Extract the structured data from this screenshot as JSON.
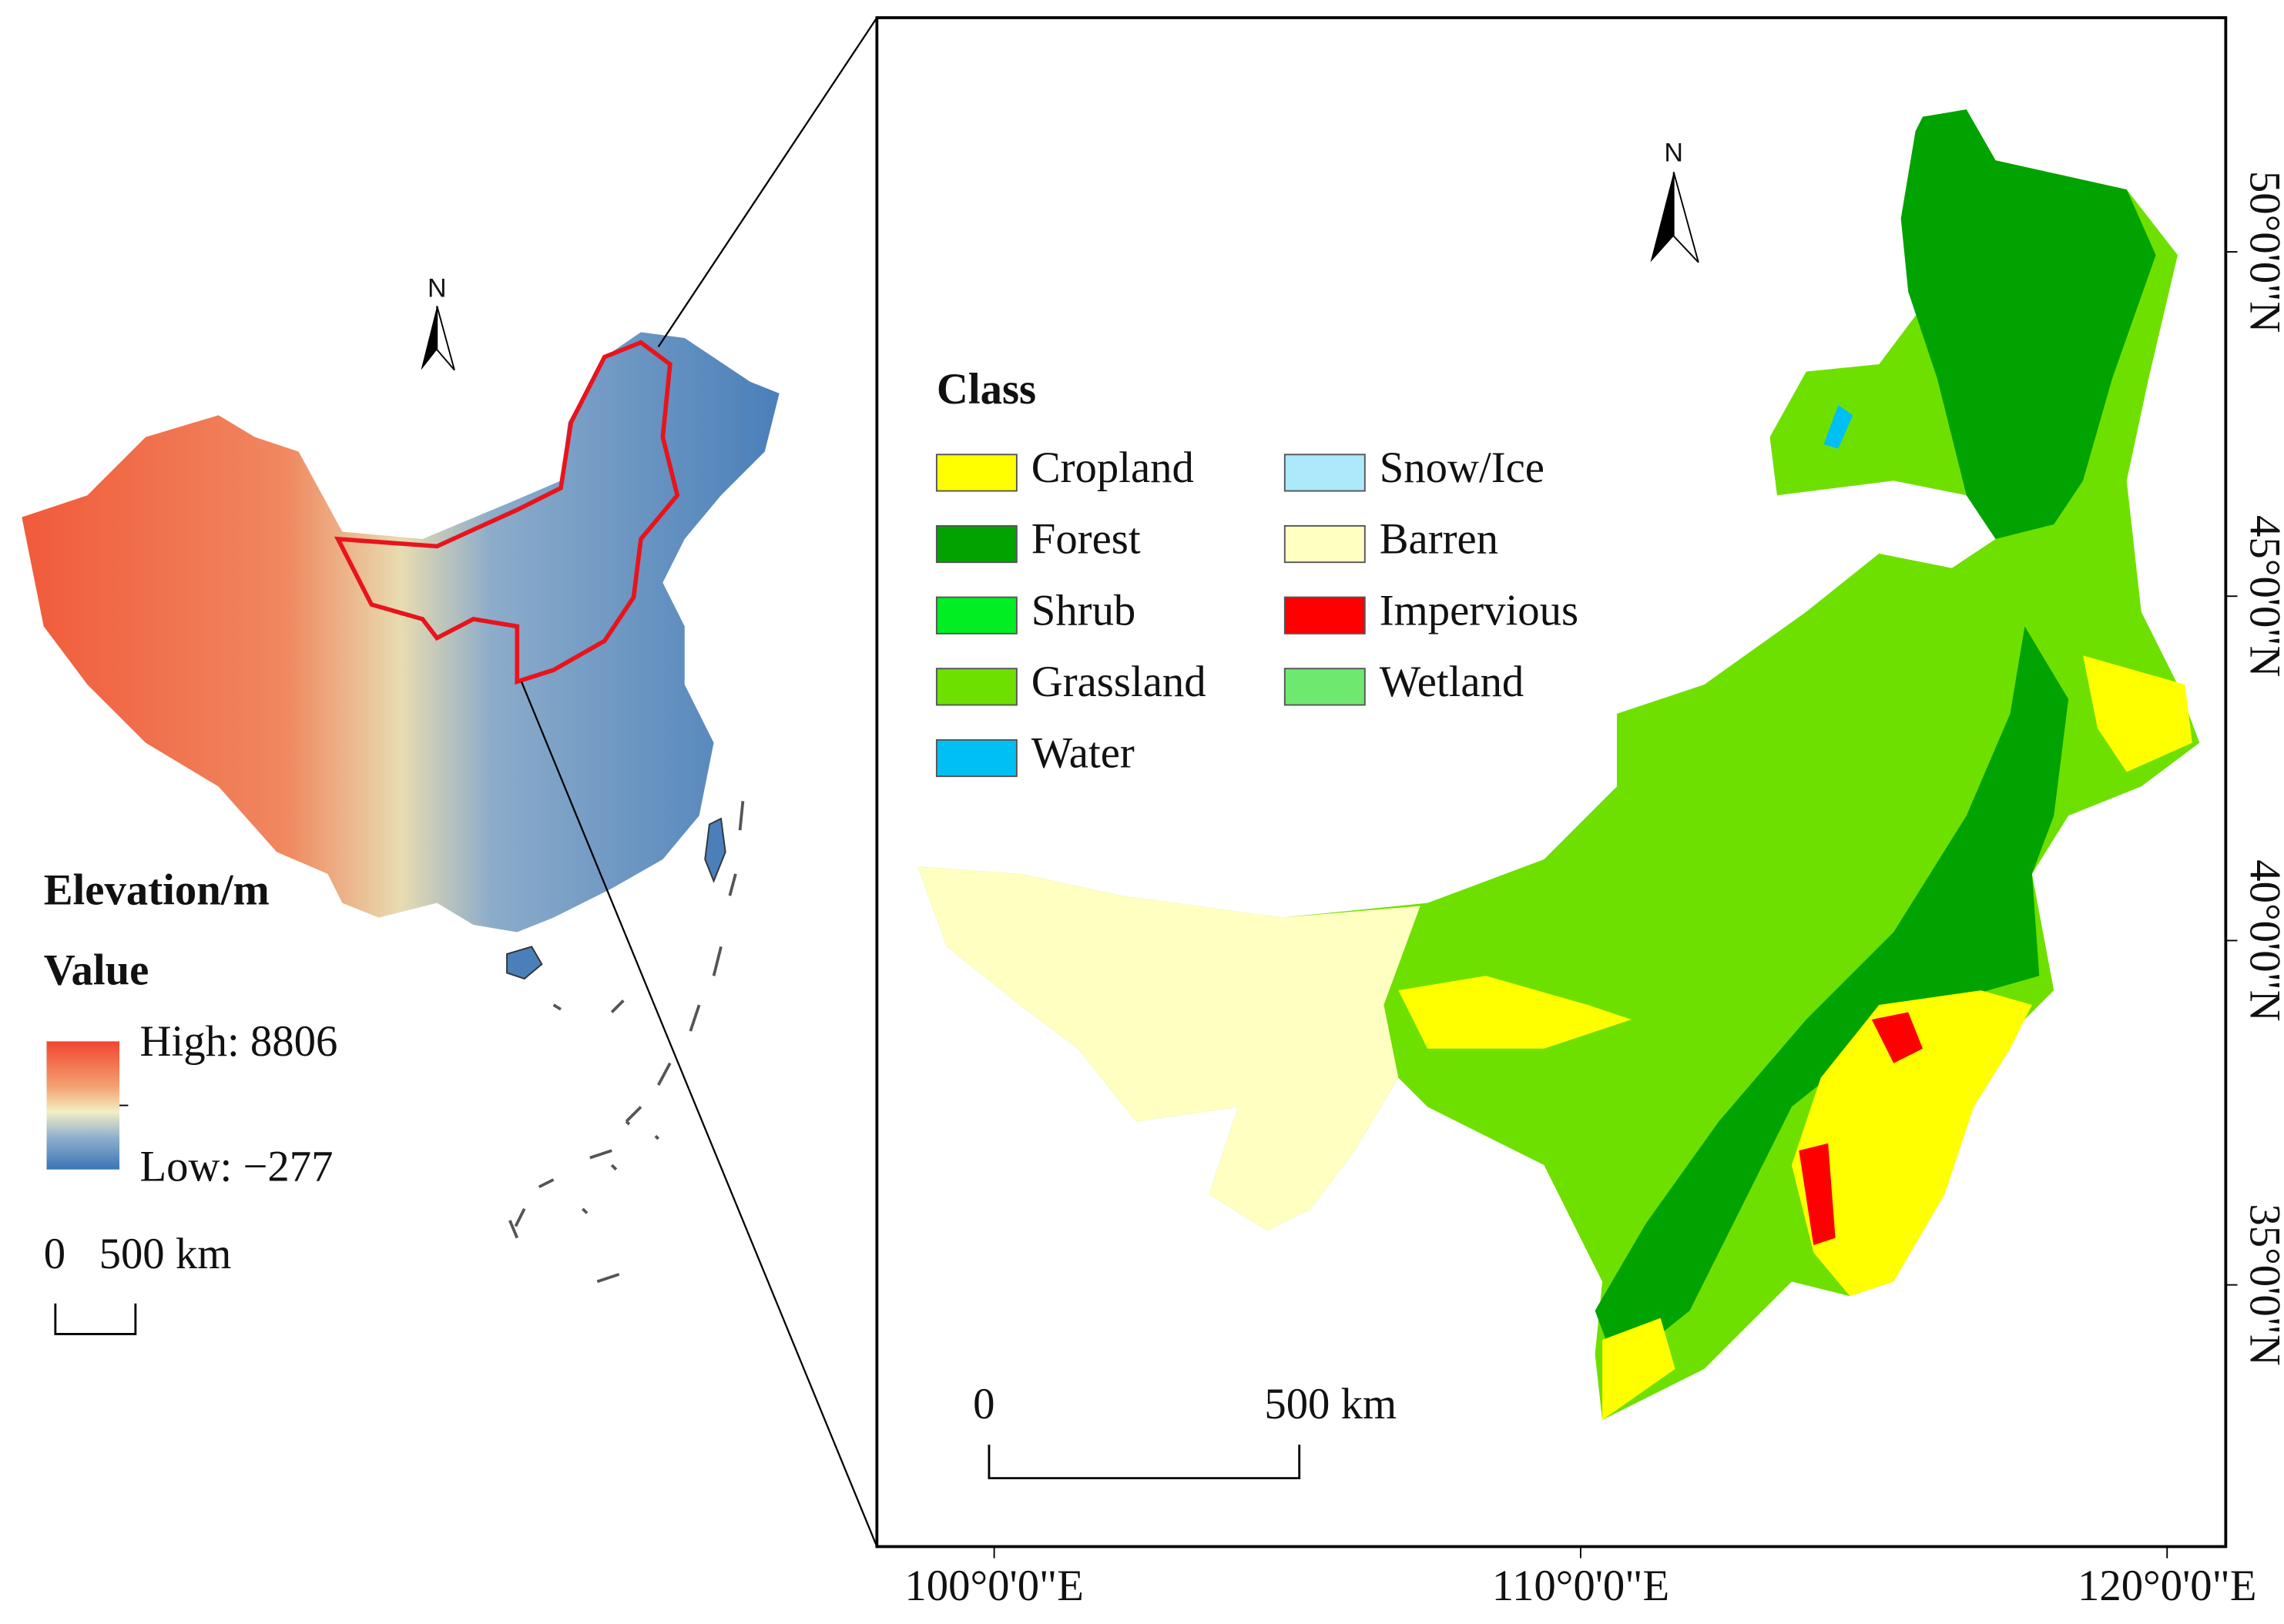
{
  "left_map": {
    "north": "N",
    "legend_title": "Elevation/m",
    "legend_subtitle": "Value",
    "high": "High: 8806",
    "low": "Low: −277",
    "scale_start": "0",
    "scale_end": "500 km"
  },
  "right_map": {
    "north": "N",
    "legend_title": "Class",
    "classes": [
      {
        "name": "Cropland",
        "color": "#ffff00"
      },
      {
        "name": "Forest",
        "color": "#00a300"
      },
      {
        "name": "Shrub",
        "color": "#00ee22"
      },
      {
        "name": "Grassland",
        "color": "#6ee000"
      },
      {
        "name": "Water",
        "color": "#00bff3"
      },
      {
        "name": "Snow/Ice",
        "color": "#abe9fb"
      },
      {
        "name": "Barren",
        "color": "#ffffc2"
      },
      {
        "name": "Impervious",
        "color": "#ff0000"
      },
      {
        "name": "Wetland",
        "color": "#6ee86e"
      }
    ],
    "scale_start": "0",
    "scale_end": "500 km",
    "xlim": [
      98,
      121
    ],
    "ylim": [
      31.2,
      53.4
    ],
    "xticks": [
      {
        "value": 100,
        "label": "100°0'0\"E"
      },
      {
        "value": 110,
        "label": "110°0'0\"E"
      },
      {
        "value": 120,
        "label": "120°0'0\"E"
      }
    ],
    "yticks": [
      {
        "value": 50,
        "label": "50°0'0\"N"
      },
      {
        "value": 45,
        "label": "45°0'0\"N"
      },
      {
        "value": 40,
        "label": "40°0'0\"N"
      },
      {
        "value": 35,
        "label": "35°0'0\"N"
      }
    ]
  }
}
